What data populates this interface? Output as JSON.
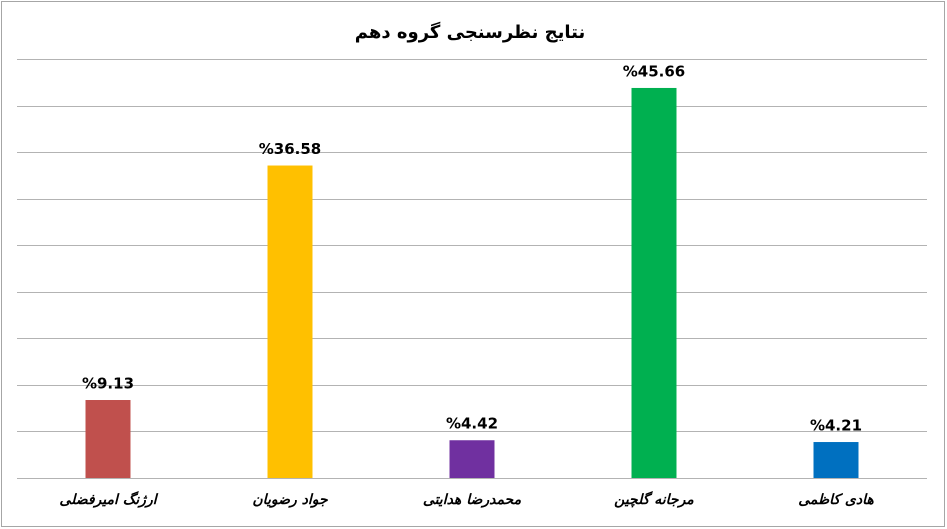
{
  "chart_data": {
    "type": "bar",
    "title": "نتایج نظرسنجی گروه دهم",
    "categories": [
      "ارژنگ امیرفضلی",
      "جواد رضویان",
      "محمدرضا هدایتی",
      "مرجانه گلچین",
      "هادی کاظمی"
    ],
    "values": [
      9.13,
      36.58,
      4.42,
      45.66,
      4.21
    ],
    "value_labels": [
      "%9.13",
      "%36.58",
      "%4.42",
      "%45.66",
      "%4.21"
    ],
    "colors": [
      "#c0504d",
      "#ffc000",
      "#7030a0",
      "#00b050",
      "#0070c0"
    ],
    "ylim": [
      0,
      49.05
    ],
    "yticks": [
      0,
      5.45,
      10.9,
      16.35,
      21.8,
      27.25,
      32.7,
      38.15,
      43.6,
      49.05
    ],
    "grid": true
  }
}
